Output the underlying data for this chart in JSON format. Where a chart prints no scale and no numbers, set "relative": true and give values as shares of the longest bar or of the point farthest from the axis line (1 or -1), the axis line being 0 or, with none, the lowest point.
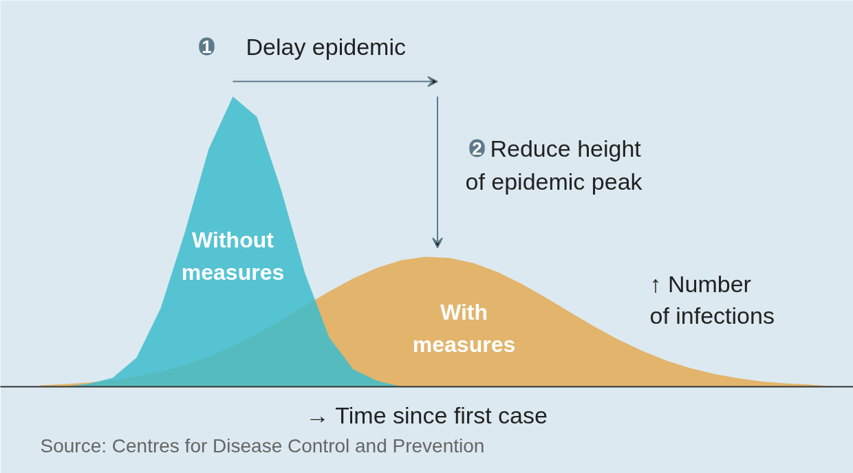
{
  "chart_data": {
    "type": "area",
    "relative": true,
    "xlabel": "→ Time since first case",
    "ylabel": "↑ Number\nof infections",
    "categories": [
      null,
      null,
      null,
      null,
      null,
      null,
      null,
      null,
      null,
      null,
      null,
      null,
      null,
      null,
      null,
      null,
      null,
      null,
      null,
      null,
      null,
      null,
      null,
      null,
      null,
      null,
      null,
      null,
      null,
      null,
      null,
      null,
      null,
      null
    ],
    "series": [
      {
        "name": "With measures",
        "color": "#e2b46c",
        "values": [
          0.005,
          0.009,
          0.014,
          0.022,
          0.035,
          0.052,
          0.074,
          0.104,
          0.14,
          0.182,
          0.229,
          0.279,
          0.328,
          0.373,
          0.41,
          0.436,
          0.448,
          0.444,
          0.426,
          0.395,
          0.354,
          0.307,
          0.257,
          0.208,
          0.163,
          0.124,
          0.09,
          0.064,
          0.044,
          0.029,
          0.018,
          0.011,
          0.007,
          0.0
        ]
      },
      {
        "name": "Without measures",
        "color": "#3dbccd",
        "values": [
          0.0,
          0.0,
          0.01,
          0.03,
          0.1,
          0.27,
          0.53,
          0.82,
          1.0,
          0.93,
          0.68,
          0.39,
          0.17,
          0.06,
          0.02,
          0.0,
          0.0,
          0.0,
          0.0,
          0.0,
          0.0,
          0.0,
          0.0,
          0.0,
          0.0,
          0.0,
          0.0,
          0.0,
          0.0,
          0.0,
          0.0,
          0.0,
          0.0,
          0.0
        ]
      }
    ],
    "annotations": [
      "1",
      "Delay epidemic",
      "2",
      "Reduce height\nof epidemic peak",
      "Source: Centres for Disease Control and Prevention"
    ]
  }
}
